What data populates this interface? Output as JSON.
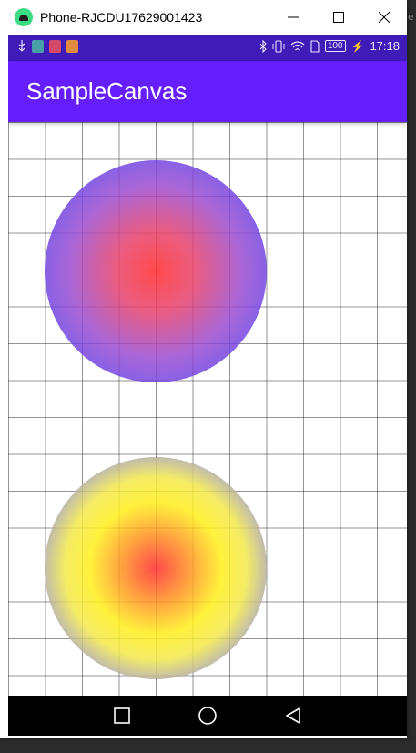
{
  "window": {
    "title": "Phone-RJCDU17629001423"
  },
  "statusbar": {
    "battery": "100",
    "time": "17:18"
  },
  "appbar": {
    "title": "SampleCanvas"
  },
  "canvas": {
    "circles": [
      {
        "name": "circle-red-blue",
        "center_color": "#ff2a2a",
        "edge_color": "#2f3cff"
      },
      {
        "name": "circle-yellow-blue",
        "center_color": "#ff2a2a",
        "mid_color": "#ffef1a",
        "edge_color": "#2f3cff"
      }
    ],
    "grid": true
  },
  "navbar": {
    "icons": [
      "recents-square-icon",
      "home-circle-icon",
      "back-triangle-icon"
    ]
  },
  "colors": {
    "statusbar": "#3f1bb8",
    "appbar": "#651fff",
    "navbar": "#000000"
  }
}
